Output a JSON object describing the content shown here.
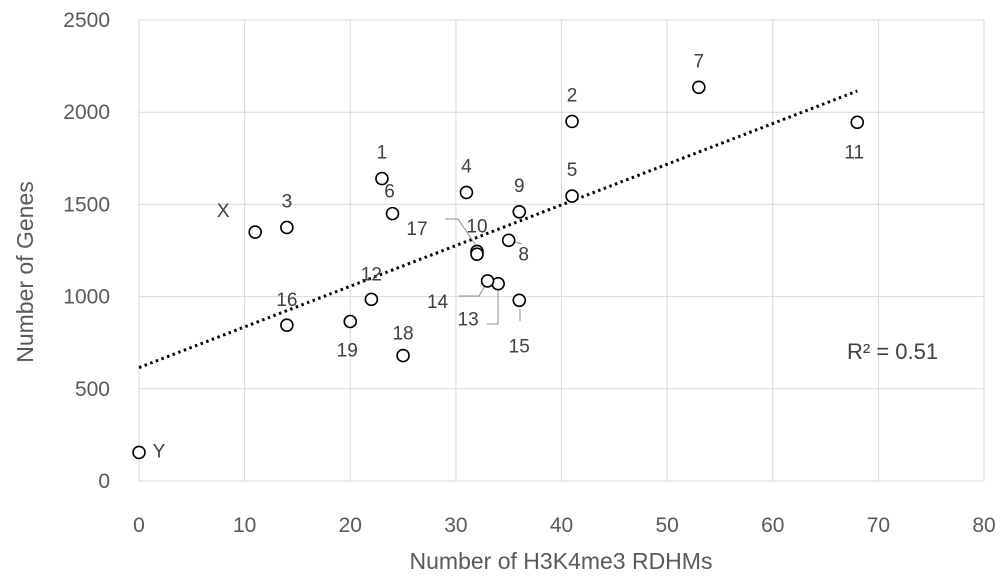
{
  "chart_data": {
    "type": "scatter",
    "title": "",
    "xlabel": "Number of H3K4me3 RDHMs",
    "ylabel": "Number of Genes",
    "xlim": [
      0,
      80
    ],
    "ylim": [
      0,
      2500
    ],
    "xticks": [
      "0",
      "10",
      "20",
      "30",
      "40",
      "50",
      "60",
      "70",
      "80"
    ],
    "yticks": [
      "0",
      "500",
      "1000",
      "1500",
      "2000",
      "2500"
    ],
    "grid": true,
    "points": [
      {
        "label": "1",
        "x": 23,
        "y": 1640
      },
      {
        "label": "2",
        "x": 41,
        "y": 1950
      },
      {
        "label": "3",
        "x": 14,
        "y": 1375
      },
      {
        "label": "4",
        "x": 31,
        "y": 1565
      },
      {
        "label": "5",
        "x": 41,
        "y": 1545
      },
      {
        "label": "6",
        "x": 24,
        "y": 1450
      },
      {
        "label": "7",
        "x": 53,
        "y": 2135
      },
      {
        "label": "8",
        "x": 35,
        "y": 1305
      },
      {
        "label": "9",
        "x": 36,
        "y": 1460
      },
      {
        "label": "10",
        "x": 32,
        "y": 1245
      },
      {
        "label": "11",
        "x": 68,
        "y": 1945
      },
      {
        "label": "12",
        "x": 22,
        "y": 985
      },
      {
        "label": "13",
        "x": 34,
        "y": 1070
      },
      {
        "label": "14",
        "x": 33,
        "y": 1085
      },
      {
        "label": "15",
        "x": 36,
        "y": 980
      },
      {
        "label": "16",
        "x": 14,
        "y": 845
      },
      {
        "label": "17",
        "x": 32,
        "y": 1230
      },
      {
        "label": "18",
        "x": 25,
        "y": 680
      },
      {
        "label": "19",
        "x": 20,
        "y": 865
      },
      {
        "label": "X",
        "x": 11,
        "y": 1350
      },
      {
        "label": "Y",
        "x": 0,
        "y": 155
      }
    ],
    "trendline": {
      "type": "linear",
      "x_start": 0,
      "y_start": 615,
      "x_end": 68,
      "y_end": 2115
    },
    "annotation": "R² = 0.51"
  }
}
